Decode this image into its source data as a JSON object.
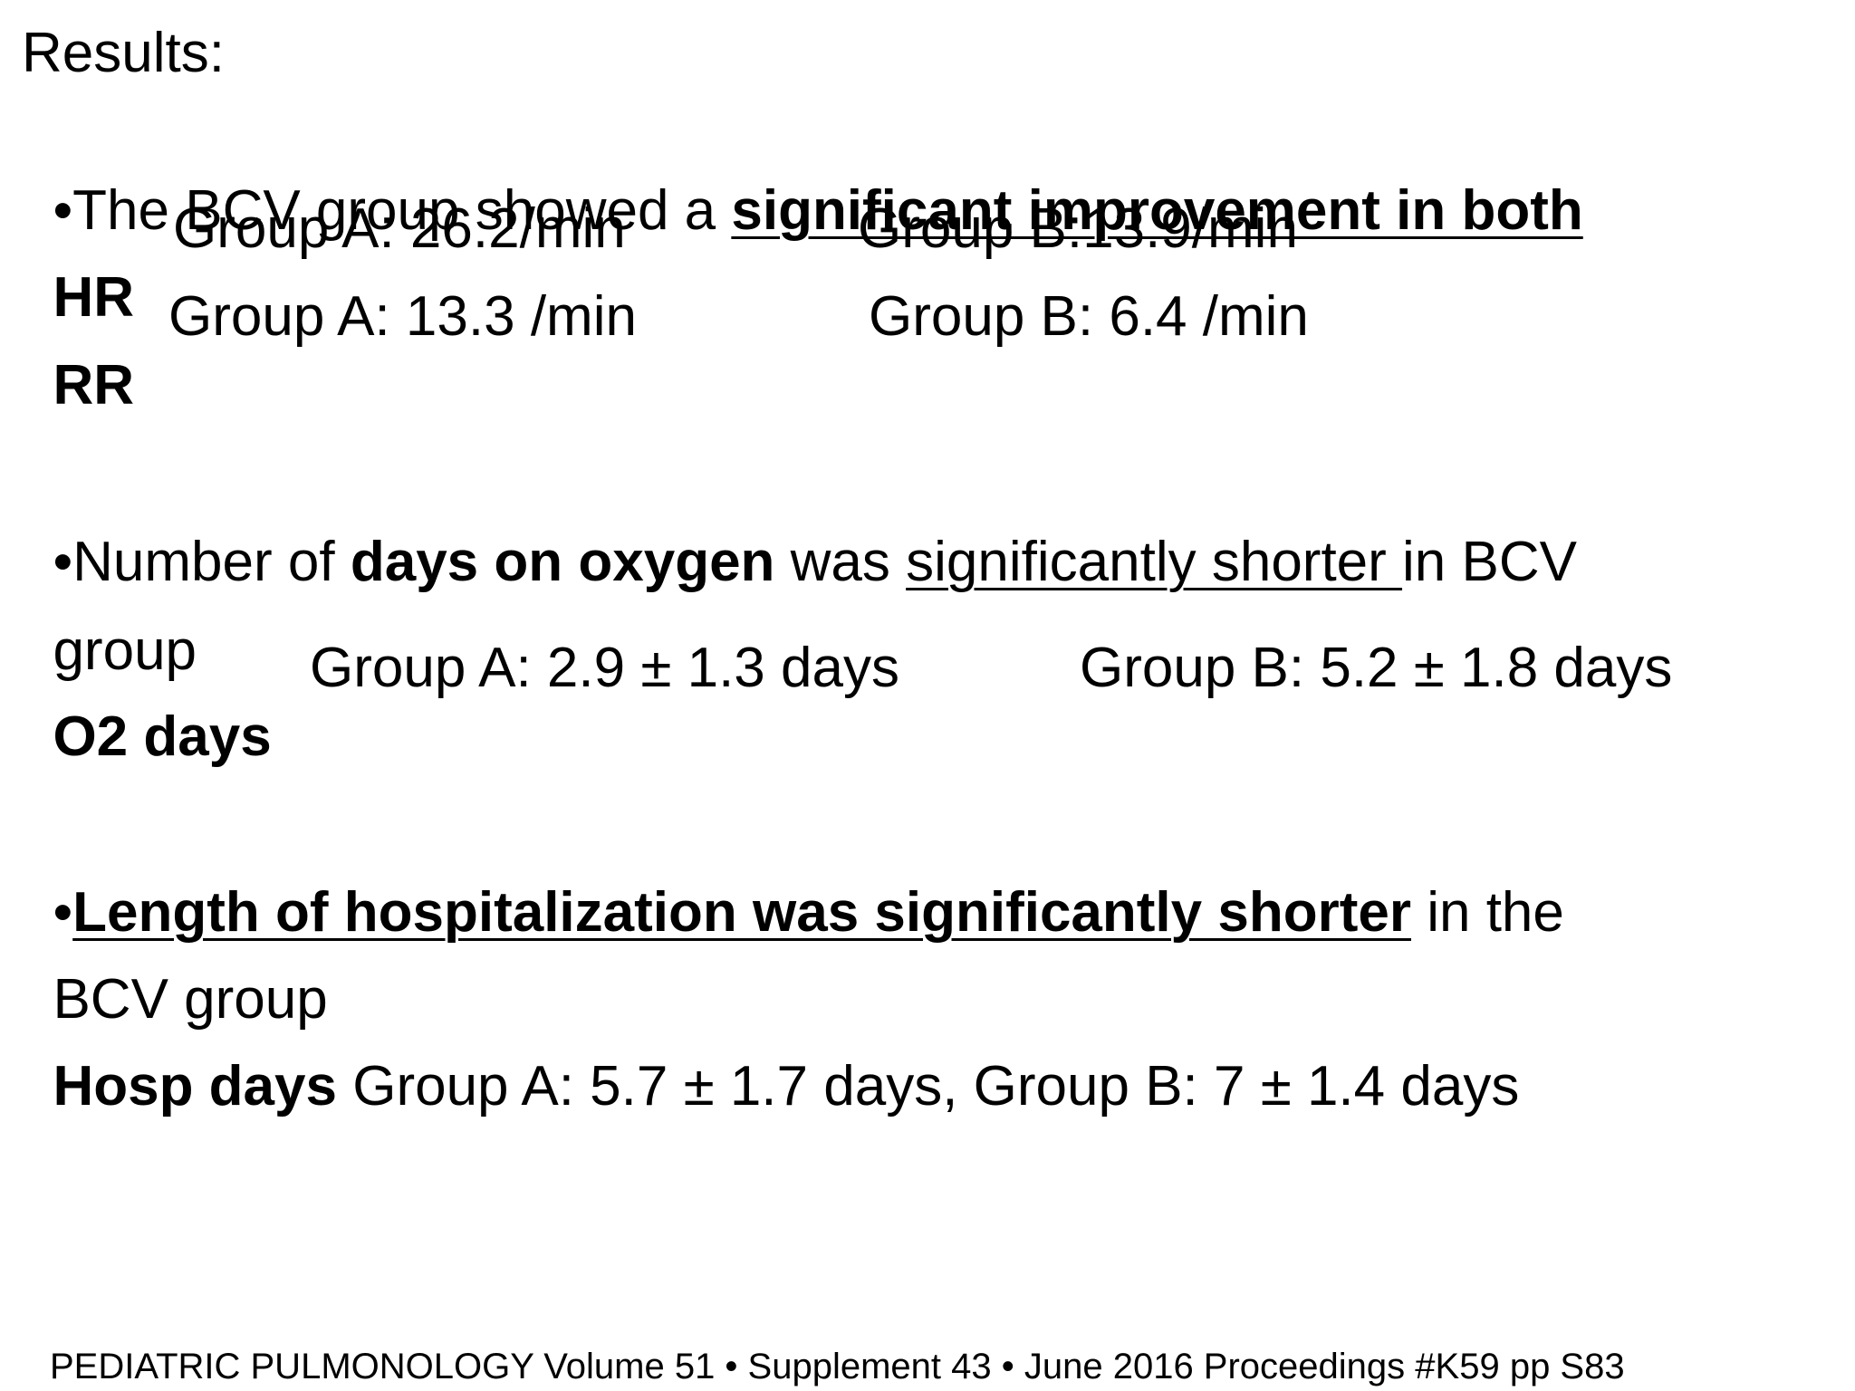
{
  "title": "Results:",
  "lines": [
    [
      "•The BCV group showed a ",
      "significant improvement in both"
    ],
    [
      "HR",
      "Group A: 26.2/min",
      "Group B:13.9/min"
    ],
    [
      "RR",
      "Group A: 13.3 /min",
      "Group B: 6.4 /min"
    ],
    [
      "•Number of ",
      "days on oxygen",
      " was ",
      "significantly shorter ",
      "in BCV"
    ],
    [
      "group"
    ],
    [
      "O2 days",
      "Group A: 2.9 ± 1.3 days",
      "Group B: 5.2 ± 1.8 days"
    ],
    [
      "•",
      "Length of hospitalization was significantly shorter",
      " in the"
    ],
    [
      "BCV group"
    ],
    [
      "Hosp days",
      " Group A: 5.7 ± 1.7 days, Group B: 7 ± 1.4 days"
    ]
  ],
  "footer": "PEDIATRIC PULMONOLOGY Volume 51 • Supplement 43 • June 2016 Proceedings #K59 pp S83"
}
